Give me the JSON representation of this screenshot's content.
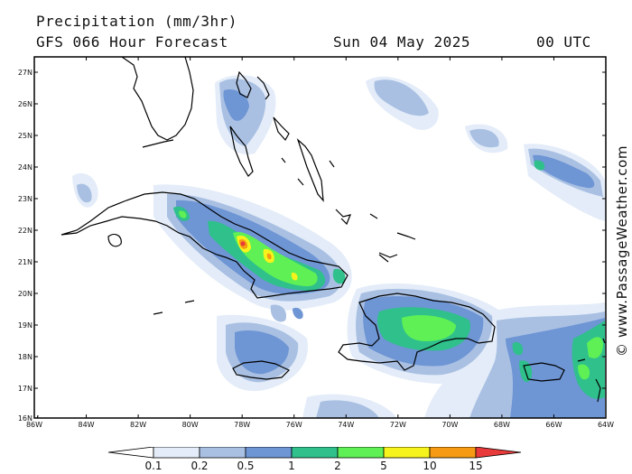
{
  "header": {
    "title": "Precipitation (mm/3hr)",
    "subtitle": "GFS 066 Hour Forecast",
    "date": "Sun 04 May 2025",
    "time": "00 UTC"
  },
  "watermark": "© www.PassageWeather.com",
  "axes": {
    "lat_labels": [
      "27N",
      "26N",
      "25N",
      "24N",
      "23N",
      "22N",
      "21N",
      "20N",
      "19N",
      "18N",
      "17N",
      "16N"
    ],
    "lon_labels": [
      "86W",
      "84W",
      "82W",
      "80W",
      "78W",
      "76W",
      "74W",
      "72W",
      "70W",
      "68W",
      "66W",
      "64W"
    ]
  },
  "legend": {
    "labels": [
      "0.1",
      "0.2",
      "0.5",
      "1",
      "2",
      "5",
      "10",
      "15"
    ],
    "colors": [
      "#ffffff",
      "#e3ecf8",
      "#a9c0e3",
      "#6e95d4",
      "#2fc08c",
      "#5ef055",
      "#f6f21b",
      "#f59a12",
      "#e83a3a"
    ]
  },
  "map_colors": {
    "land_outline": "#000000",
    "frame": "#000000"
  }
}
